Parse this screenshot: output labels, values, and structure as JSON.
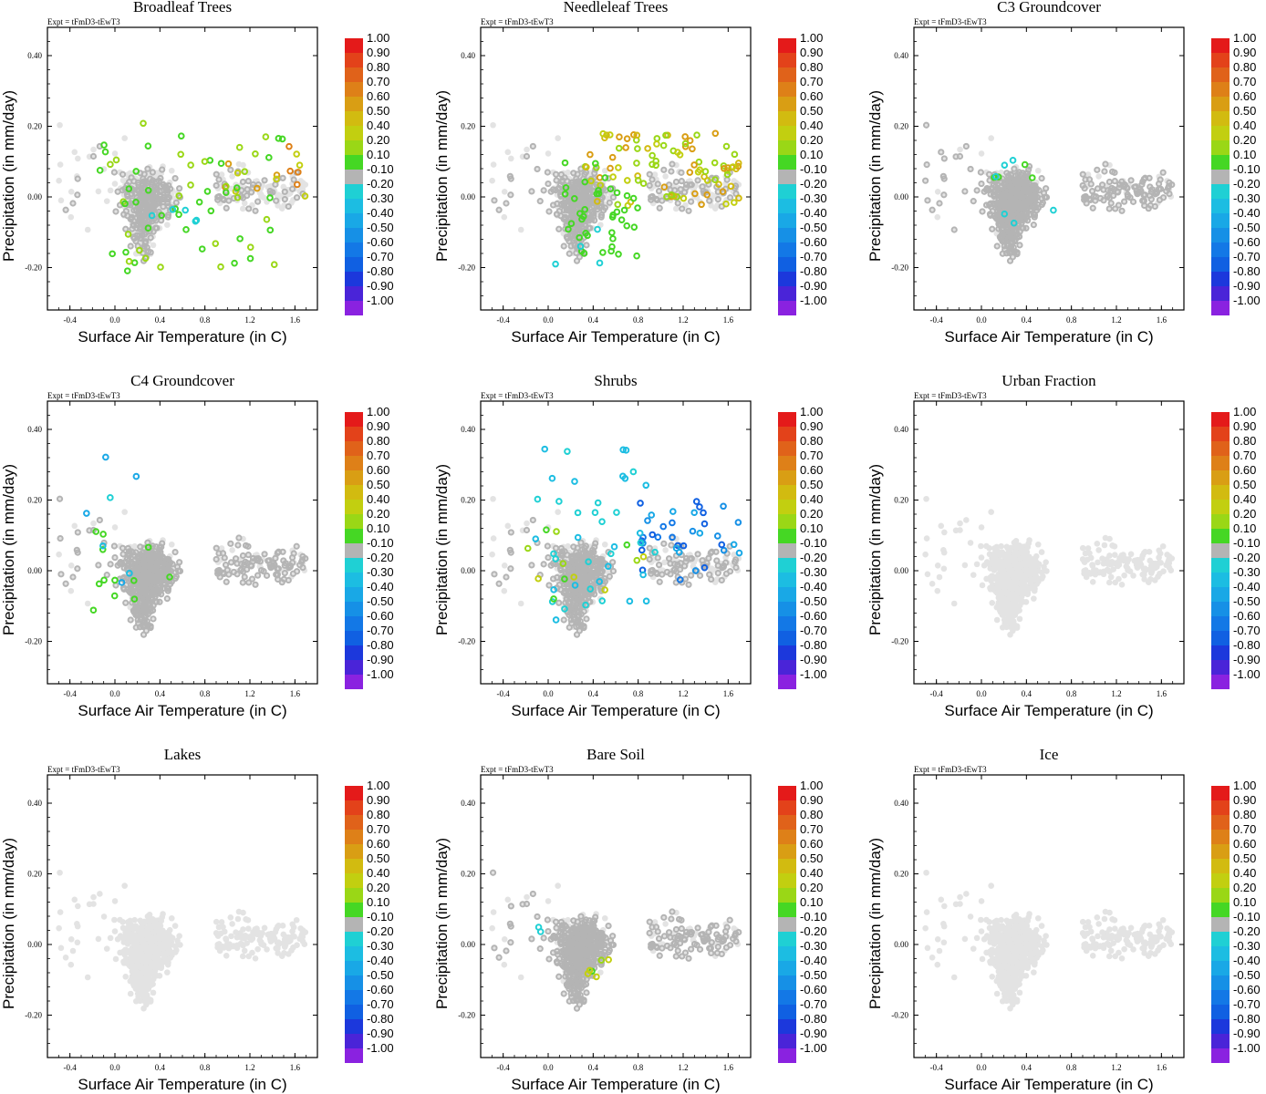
{
  "figure": {
    "experiment_label": "Expt = tFmD3-tEwT3",
    "xlabel": "Surface Air Temperature (in C)",
    "ylabel": "Precipitation (in mm/day)",
    "xticks": [
      "-0.4",
      "0.0",
      "0.4",
      "0.8",
      "1.2",
      "1.6"
    ],
    "yticks": [
      "0.40",
      "0.20",
      "0.00",
      "-0.20"
    ],
    "colorbar_labels": [
      "1.00",
      "0.90",
      "0.80",
      "0.70",
      "0.60",
      "0.50",
      "0.40",
      "0.20",
      "0.10",
      "-0.10",
      "-0.20",
      "-0.30",
      "-0.40",
      "-0.50",
      "-0.60",
      "-0.70",
      "-0.80",
      "-0.90",
      "-1.00"
    ],
    "colorbar_colors": [
      "#e41a1a",
      "#e3421a",
      "#e0621a",
      "#de8018",
      "#d99e14",
      "#d2bb10",
      "#c2cf10",
      "#9ad716",
      "#45d724",
      "#b4b4b4",
      "#1fd0d4",
      "#1cbde2",
      "#19a8e6",
      "#1690e6",
      "#1378e6",
      "#1060e2",
      "#1c38dc",
      "#4a24d8",
      "#8a22e0"
    ],
    "background_point_color": "#e3e3e3",
    "neutral_point_color": "#b4b4b4"
  },
  "chart_data": [
    {
      "type": "scatter",
      "title": "Broadleaf Trees",
      "xlabel": "Surface Air Temperature (in C)",
      "ylabel": "Precipitation (in mm/day)",
      "xlim": [
        -0.6,
        1.8
      ],
      "ylim": [
        -0.32,
        0.48
      ],
      "correlation_range": [
        -1.0,
        1.0
      ],
      "description_series": [
        {
          "name": "strong positive",
          "approx_x_range": [
            0.9,
            1.7
          ],
          "approx_y_range": [
            0.0,
            0.15
          ],
          "color_class": "0.40-0.70"
        },
        {
          "name": "weak positive",
          "approx_x_range": [
            -0.2,
            1.5
          ],
          "approx_y_range": [
            -0.21,
            0.21
          ],
          "color_class": "0.10-0.20"
        },
        {
          "name": "weak negative",
          "approx_x_range": [
            0.2,
            0.9
          ],
          "approx_y_range": [
            -0.11,
            0.0
          ],
          "color_class": "-0.20"
        }
      ]
    },
    {
      "type": "scatter",
      "title": "Needleleaf Trees",
      "xlabel": "Surface Air Temperature (in C)",
      "ylabel": "Precipitation (in mm/day)",
      "xlim": [
        -0.6,
        1.8
      ],
      "ylim": [
        -0.32,
        0.48
      ],
      "correlation_range": [
        -1.0,
        1.0
      ],
      "description_series": [
        {
          "name": "moderate positive",
          "approx_x_range": [
            0.3,
            1.7
          ],
          "approx_y_range": [
            -0.03,
            0.18
          ],
          "color_class": "0.20-0.60"
        },
        {
          "name": "weak positive",
          "approx_x_range": [
            0.1,
            0.8
          ],
          "approx_y_range": [
            -0.17,
            0.1
          ],
          "color_class": "0.10"
        },
        {
          "name": "weak negative",
          "approx_x_range": [
            0.0,
            0.5
          ],
          "approx_y_range": [
            -0.2,
            -0.05
          ],
          "color_class": "-0.20"
        }
      ]
    },
    {
      "type": "scatter",
      "title": "C3 Groundcover",
      "xlabel": "Surface Air Temperature (in C)",
      "ylabel": "Precipitation (in mm/day)",
      "xlim": [
        -0.6,
        1.8
      ],
      "ylim": [
        -0.32,
        0.48
      ],
      "correlation_range": [
        -1.0,
        1.0
      ],
      "description_series": [
        {
          "name": "weak positive",
          "approx_x_range": [
            0.0,
            0.5
          ],
          "approx_y_range": [
            0.04,
            0.1
          ],
          "color_class": "0.10"
        },
        {
          "name": "weak negative",
          "approx_x_range": [
            0.1,
            0.8
          ],
          "approx_y_range": [
            -0.08,
            0.12
          ],
          "color_class": "-0.20"
        }
      ]
    },
    {
      "type": "scatter",
      "title": "C4 Groundcover",
      "xlabel": "Surface Air Temperature (in C)",
      "ylabel": "Precipitation (in mm/day)",
      "xlim": [
        -0.6,
        1.8
      ],
      "ylim": [
        -0.32,
        0.48
      ],
      "correlation_range": [
        -1.0,
        1.0
      ],
      "description_series": [
        {
          "name": "weak positive",
          "approx_x_range": [
            -0.2,
            0.5
          ],
          "approx_y_range": [
            -0.12,
            0.12
          ],
          "color_class": "0.10"
        },
        {
          "name": "weak negative",
          "approx_x_range": [
            -0.3,
            0.3
          ],
          "approx_y_range": [
            -0.12,
            0.35
          ],
          "color_class": "-0.20 to -0.40"
        }
      ]
    },
    {
      "type": "scatter",
      "title": "Shrubs",
      "xlabel": "Surface Air Temperature (in C)",
      "ylabel": "Precipitation (in mm/day)",
      "xlim": [
        -0.6,
        1.8
      ],
      "ylim": [
        -0.32,
        0.48
      ],
      "correlation_range": [
        -1.0,
        1.0
      ],
      "description_series": [
        {
          "name": "strong negative",
          "approx_x_range": [
            0.8,
            1.7
          ],
          "approx_y_range": [
            -0.03,
            0.2
          ],
          "color_class": "-0.40 to -0.70"
        },
        {
          "name": "weak negative",
          "approx_x_range": [
            -0.2,
            1.0
          ],
          "approx_y_range": [
            -0.17,
            0.35
          ],
          "color_class": "-0.20 to -0.30"
        },
        {
          "name": "weak positive",
          "approx_x_range": [
            -0.2,
            0.9
          ],
          "approx_y_range": [
            -0.08,
            0.12
          ],
          "color_class": "0.10-0.40"
        }
      ]
    },
    {
      "type": "scatter",
      "title": "Urban Fraction",
      "xlabel": "Surface Air Temperature (in C)",
      "ylabel": "Precipitation (in mm/day)",
      "xlim": [
        -0.6,
        1.8
      ],
      "ylim": [
        -0.32,
        0.48
      ],
      "correlation_range": [
        -1.0,
        1.0
      ],
      "description_series": [
        {
          "name": "no significant correlation",
          "approx_x_range": [
            -0.6,
            1.7
          ],
          "approx_y_range": [
            -0.27,
            0.4
          ],
          "color_class": "background"
        }
      ]
    },
    {
      "type": "scatter",
      "title": "Lakes",
      "xlabel": "Surface Air Temperature (in C)",
      "ylabel": "Precipitation (in mm/day)",
      "xlim": [
        -0.6,
        1.8
      ],
      "ylim": [
        -0.32,
        0.48
      ],
      "correlation_range": [
        -1.0,
        1.0
      ],
      "description_series": [
        {
          "name": "no significant correlation",
          "approx_x_range": [
            -0.6,
            1.7
          ],
          "approx_y_range": [
            -0.27,
            0.4
          ],
          "color_class": "background"
        }
      ]
    },
    {
      "type": "scatter",
      "title": "Bare Soil",
      "xlabel": "Surface Air Temperature (in C)",
      "ylabel": "Precipitation (in mm/day)",
      "xlim": [
        -0.6,
        1.8
      ],
      "ylim": [
        -0.32,
        0.48
      ],
      "correlation_range": [
        -1.0,
        1.0
      ],
      "description_series": [
        {
          "name": "weak positive",
          "approx_x_range": [
            0.3,
            0.7
          ],
          "approx_y_range": [
            -0.12,
            -0.04
          ],
          "color_class": "0.10-0.40"
        },
        {
          "name": "weak negative",
          "approx_x_range": [
            -0.1,
            0.0
          ],
          "approx_y_range": [
            0.0,
            0.06
          ],
          "color_class": "-0.20"
        }
      ]
    },
    {
      "type": "scatter",
      "title": "Ice",
      "xlabel": "Surface Air Temperature (in C)",
      "ylabel": "Precipitation (in mm/day)",
      "xlim": [
        -0.6,
        1.8
      ],
      "ylim": [
        -0.32,
        0.48
      ],
      "correlation_range": [
        -1.0,
        1.0
      ],
      "description_series": [
        {
          "name": "no significant correlation",
          "approx_x_range": [
            -0.6,
            1.7
          ],
          "approx_y_range": [
            -0.27,
            0.4
          ],
          "color_class": "background"
        }
      ]
    }
  ]
}
